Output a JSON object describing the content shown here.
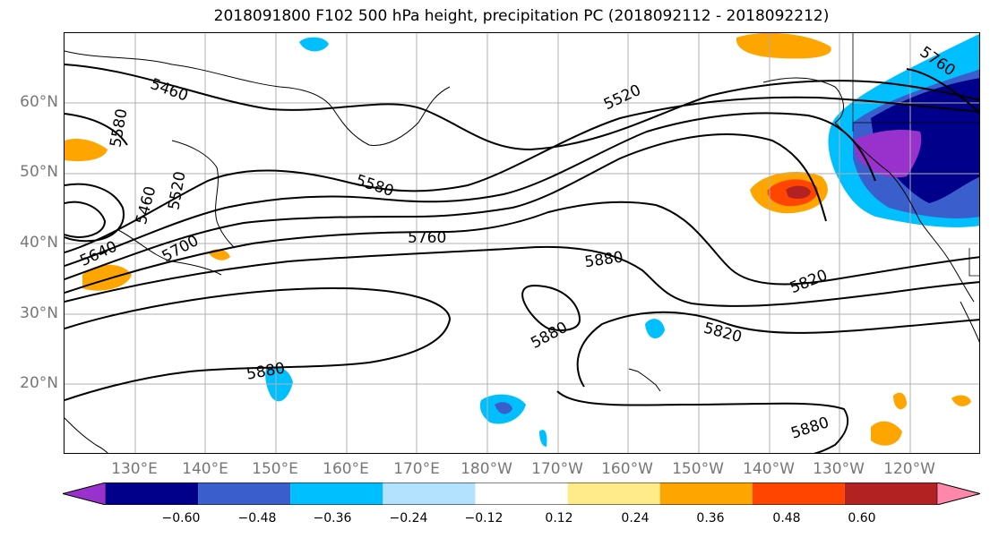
{
  "title": "2018091800 F102 500 hPa height, precipitation PC (2018092112 - 2018092212)",
  "map": {
    "latitude_labels": [
      "60°N",
      "50°N",
      "40°N",
      "30°N",
      "20°N"
    ],
    "longitude_labels": [
      "130°E",
      "140°E",
      "150°E",
      "160°E",
      "170°E",
      "180°W",
      "170°W",
      "160°W",
      "150°W",
      "140°W",
      "130°W",
      "120°W"
    ],
    "contour_labels": [
      "5460",
      "5580",
      "5460",
      "5520",
      "5640",
      "5700",
      "5520",
      "5580",
      "5760",
      "5880",
      "5820",
      "5880",
      "5820",
      "5880",
      "5880",
      "5760"
    ],
    "contour_color": "#000000",
    "grid_color": "#b0b0b0",
    "coastline_color": "#000000"
  },
  "colorbar": {
    "tick_labels": [
      "−0.60",
      "−0.48",
      "−0.36",
      "−0.24",
      "−0.12",
      "0.12",
      "0.24",
      "0.36",
      "0.48",
      "0.60"
    ],
    "colors": [
      "#9932cc",
      "#00008b",
      "#3a5fcd",
      "#00bfff",
      "#b2e2ff",
      "#ffffff",
      "#ffeb8a",
      "#ffa500",
      "#ff4500",
      "#b22222",
      "#ff88aa"
    ],
    "extend": "both"
  }
}
